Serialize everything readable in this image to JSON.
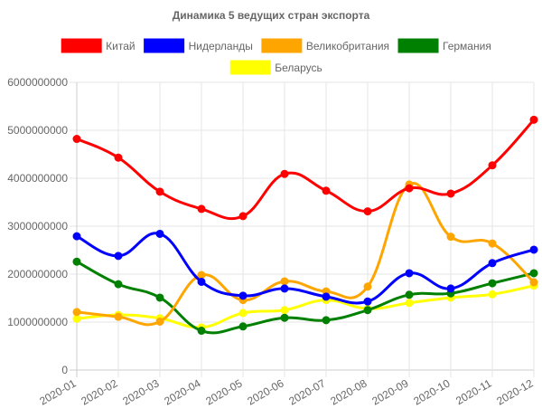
{
  "chart_data": {
    "type": "line",
    "title": "Динамика 5 ведущих стран экспорта",
    "xlabel": "",
    "ylabel": "",
    "x": [
      "2020-01",
      "2020-02",
      "2020-03",
      "2020-04",
      "2020-05",
      "2020-06",
      "2020-07",
      "2020-08",
      "2020-09",
      "2020-10",
      "2020-11",
      "2020-12"
    ],
    "ylim": [
      0,
      6000000000
    ],
    "yticks": [
      0,
      1000000000,
      2000000000,
      3000000000,
      4000000000,
      5000000000,
      6000000000
    ],
    "ytick_labels": [
      "0",
      "1000000000",
      "2000000000",
      "3000000000",
      "4000000000",
      "5000000000",
      "6000000000"
    ],
    "grid": true,
    "legend_position": "top",
    "series": [
      {
        "name": "Китай",
        "color": "#ff0000",
        "values": [
          4820000000,
          4430000000,
          3720000000,
          3360000000,
          3210000000,
          4090000000,
          3740000000,
          3310000000,
          3790000000,
          3680000000,
          4270000000,
          5220000000
        ]
      },
      {
        "name": "Нидерланды",
        "color": "#0000ff",
        "values": [
          2790000000,
          2380000000,
          2840000000,
          1840000000,
          1550000000,
          1700000000,
          1530000000,
          1430000000,
          2020000000,
          1700000000,
          2230000000,
          2510000000
        ]
      },
      {
        "name": "Великобритания",
        "color": "#ffa500",
        "values": [
          1210000000,
          1110000000,
          1010000000,
          1980000000,
          1460000000,
          1850000000,
          1640000000,
          1740000000,
          3870000000,
          2780000000,
          2640000000,
          1830000000
        ]
      },
      {
        "name": "Германия",
        "color": "#008000",
        "values": [
          2260000000,
          1790000000,
          1510000000,
          820000000,
          910000000,
          1090000000,
          1040000000,
          1250000000,
          1570000000,
          1600000000,
          1810000000,
          2020000000
        ]
      },
      {
        "name": "Беларусь",
        "color": "#ffff00",
        "values": [
          1070000000,
          1150000000,
          1080000000,
          890000000,
          1190000000,
          1250000000,
          1460000000,
          1280000000,
          1400000000,
          1510000000,
          1580000000,
          1760000000
        ]
      }
    ]
  }
}
